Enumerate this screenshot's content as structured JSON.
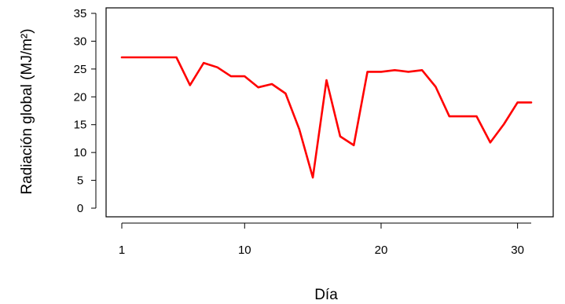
{
  "chart_data": {
    "type": "line",
    "xlabel": "Día",
    "ylabel": "Radiación global (MJ/m²)",
    "xlim": [
      1,
      31
    ],
    "ylim": [
      0,
      35
    ],
    "x_ticks": [
      1,
      10,
      20,
      30
    ],
    "y_ticks": [
      0,
      5,
      10,
      15,
      20,
      25,
      30,
      35
    ],
    "grid": false,
    "series": [
      {
        "color": "#ff0000",
        "x": [
          1,
          2,
          3,
          4,
          5,
          6,
          7,
          8,
          9,
          10,
          11,
          12,
          13,
          14,
          15,
          16,
          17,
          18,
          19,
          20,
          21,
          22,
          23,
          24,
          25,
          26,
          27,
          28,
          29,
          30,
          31
        ],
        "y": [
          27.1,
          27.1,
          27.1,
          27.1,
          27.1,
          22.1,
          26.1,
          25.3,
          23.7,
          23.7,
          21.7,
          22.3,
          20.6,
          14.2,
          5.5,
          23.0,
          12.9,
          11.3,
          24.5,
          24.5,
          24.8,
          24.5,
          24.8,
          21.8,
          16.5,
          16.5,
          16.5,
          11.8,
          15.1,
          19.0,
          19.0
        ]
      }
    ]
  }
}
